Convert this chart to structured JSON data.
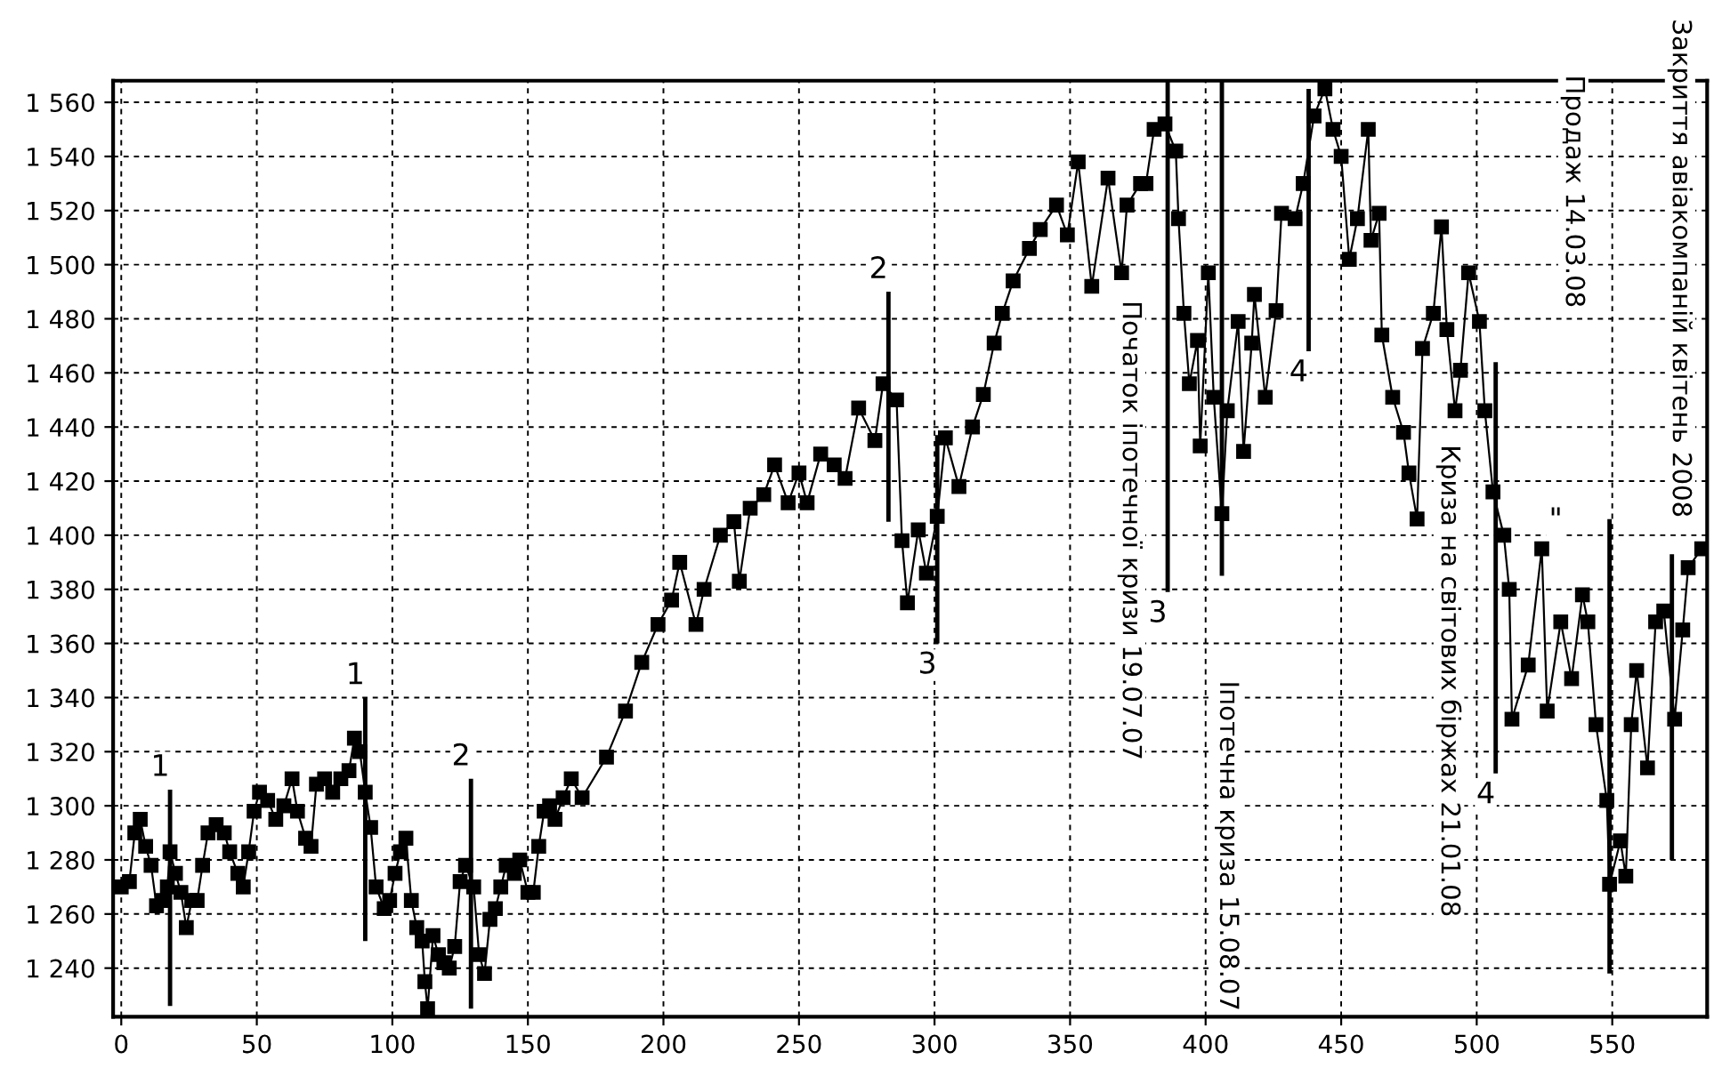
{
  "chart_data": {
    "type": "line",
    "xlim": [
      -3,
      585
    ],
    "ylim": [
      1222,
      1568
    ],
    "xticks": [
      0,
      50,
      100,
      150,
      200,
      250,
      300,
      350,
      400,
      450,
      500,
      550
    ],
    "yticks": [
      {
        "value": 1240,
        "label": "1 240"
      },
      {
        "value": 1260,
        "label": "1 260"
      },
      {
        "value": 1280,
        "label": "1 280"
      },
      {
        "value": 1300,
        "label": "1 300"
      },
      {
        "value": 1320,
        "label": "1 320"
      },
      {
        "value": 1340,
        "label": "1 340"
      },
      {
        "value": 1360,
        "label": "1 360"
      },
      {
        "value": 1380,
        "label": "1 380"
      },
      {
        "value": 1400,
        "label": "1 400"
      },
      {
        "value": 1420,
        "label": "1 420"
      },
      {
        "value": 1440,
        "label": "1 440"
      },
      {
        "value": 1460,
        "label": "1 460"
      },
      {
        "value": 1480,
        "label": "1 480"
      },
      {
        "value": 1500,
        "label": "1 500"
      },
      {
        "value": 1520,
        "label": "1 520"
      },
      {
        "value": 1540,
        "label": "1 540"
      },
      {
        "value": 1560,
        "label": "1 560"
      }
    ],
    "grid": true,
    "marker": "square",
    "line_style": "solid",
    "series": [
      {
        "color": "#000000",
        "x": [
          0,
          3,
          5,
          7,
          9,
          11,
          13,
          15,
          17,
          18,
          20,
          22,
          24,
          26,
          28,
          30,
          32,
          35,
          38,
          40,
          43,
          45,
          47,
          49,
          51,
          54,
          57,
          60,
          63,
          65,
          68,
          70,
          72,
          75,
          78,
          81,
          84,
          86,
          88,
          90,
          92,
          94,
          97,
          99,
          101,
          103,
          105,
          107,
          109,
          111,
          112,
          113,
          115,
          117,
          119,
          121,
          123,
          125,
          127,
          130,
          132,
          134,
          136,
          138,
          140,
          142,
          145,
          147,
          150,
          152,
          154,
          156,
          158,
          160,
          163,
          166,
          170,
          179,
          186,
          192,
          198,
          203,
          206,
          212,
          215,
          221,
          226,
          228,
          232,
          237,
          241,
          246,
          250,
          253,
          258,
          263,
          267,
          272,
          278,
          281,
          286,
          288,
          290,
          294,
          297,
          301,
          304,
          309,
          314,
          318,
          322,
          325,
          329,
          335,
          339,
          345,
          349,
          353,
          358,
          364,
          369,
          371,
          376,
          378,
          381,
          385,
          389,
          390,
          392,
          394,
          397,
          398,
          401,
          403,
          406,
          408,
          412,
          414,
          417,
          418,
          422,
          426,
          428,
          433,
          436,
          440,
          444,
          447,
          450,
          453,
          456,
          460,
          461,
          464,
          465,
          469,
          473,
          475,
          478,
          480,
          484,
          487,
          489,
          492,
          494,
          497,
          501,
          503,
          506,
          510,
          512,
          513,
          519,
          524,
          526,
          531,
          535,
          539,
          541,
          544,
          548,
          549,
          553,
          555,
          557,
          559,
          563,
          566,
          569,
          573,
          576,
          578,
          583
        ],
        "values": [
          1270,
          1272,
          1290,
          1295,
          1285,
          1278,
          1263,
          1265,
          1270,
          1283,
          1275,
          1268,
          1255,
          1265,
          1265,
          1278,
          1290,
          1293,
          1290,
          1283,
          1275,
          1270,
          1283,
          1298,
          1305,
          1302,
          1295,
          1300,
          1310,
          1298,
          1288,
          1285,
          1308,
          1310,
          1305,
          1310,
          1313,
          1325,
          1320,
          1305,
          1292,
          1270,
          1262,
          1265,
          1275,
          1283,
          1288,
          1265,
          1255,
          1250,
          1235,
          1225,
          1252,
          1245,
          1242,
          1240,
          1248,
          1272,
          1278,
          1270,
          1245,
          1238,
          1258,
          1262,
          1270,
          1278,
          1275,
          1280,
          1268,
          1268,
          1285,
          1298,
          1300,
          1295,
          1303,
          1310,
          1303,
          1318,
          1335,
          1353,
          1367,
          1376,
          1390,
          1367,
          1380,
          1400,
          1405,
          1383,
          1410,
          1415,
          1426,
          1412,
          1423,
          1412,
          1430,
          1426,
          1421,
          1447,
          1435,
          1456,
          1450,
          1398,
          1375,
          1402,
          1386,
          1407,
          1436,
          1418,
          1440,
          1452,
          1471,
          1482,
          1494,
          1506,
          1513,
          1522,
          1511,
          1538,
          1492,
          1532,
          1497,
          1522,
          1530,
          1530,
          1550,
          1552,
          1542,
          1517,
          1482,
          1456,
          1472,
          1433,
          1497,
          1451,
          1408,
          1446,
          1479,
          1431,
          1471,
          1489,
          1451,
          1483,
          1519,
          1517,
          1530,
          1555,
          1565,
          1550,
          1540,
          1502,
          1517,
          1550,
          1509,
          1519,
          1474,
          1451,
          1438,
          1423,
          1406,
          1469,
          1482,
          1514,
          1476,
          1446,
          1461,
          1497,
          1479,
          1446,
          1416,
          1400,
          1380,
          1332,
          1352,
          1395,
          1335,
          1368,
          1347,
          1378,
          1368,
          1330,
          1302,
          1271,
          1287,
          1274,
          1330,
          1350,
          1314,
          1368,
          1372,
          1332,
          1365,
          1388,
          1395
        ]
      },
      {
        "type": "bar",
        "color": "#000000",
        "x": [
          18,
          90,
          129,
          283,
          301,
          386,
          406,
          438,
          507,
          549,
          572
        ],
        "base": [
          1226,
          1250,
          1225,
          1405,
          1360,
          1379,
          1385,
          1468,
          1312,
          1238,
          1280
        ],
        "values": [
          80,
          90,
          85,
          85,
          77,
          189,
          183,
          97,
          152,
          168,
          113
        ]
      }
    ],
    "annotations": [
      {
        "text": "1",
        "x": 18,
        "y": 1306
      },
      {
        "text": "1",
        "x": 90,
        "y": 1340
      },
      {
        "text": "2",
        "x": 129,
        "y": 1310
      },
      {
        "text": "2",
        "x": 283,
        "y": 1490
      },
      {
        "text": "3",
        "x": 301,
        "y": 1360
      },
      {
        "text": "3",
        "x": 386,
        "y": 1379
      },
      {
        "text": "4",
        "x": 438,
        "y": 1468
      },
      {
        "text": "4",
        "x": 507,
        "y": 1312
      },
      "\"",
      "Початок іпотечної кризи 19.07.07",
      "Іпотечна криза 15.08.07",
      "Криза на світових біржах 21.01.08",
      "Продаж 14.03.08",
      "Закриття авіакомпаній квітень 2008"
    ]
  }
}
